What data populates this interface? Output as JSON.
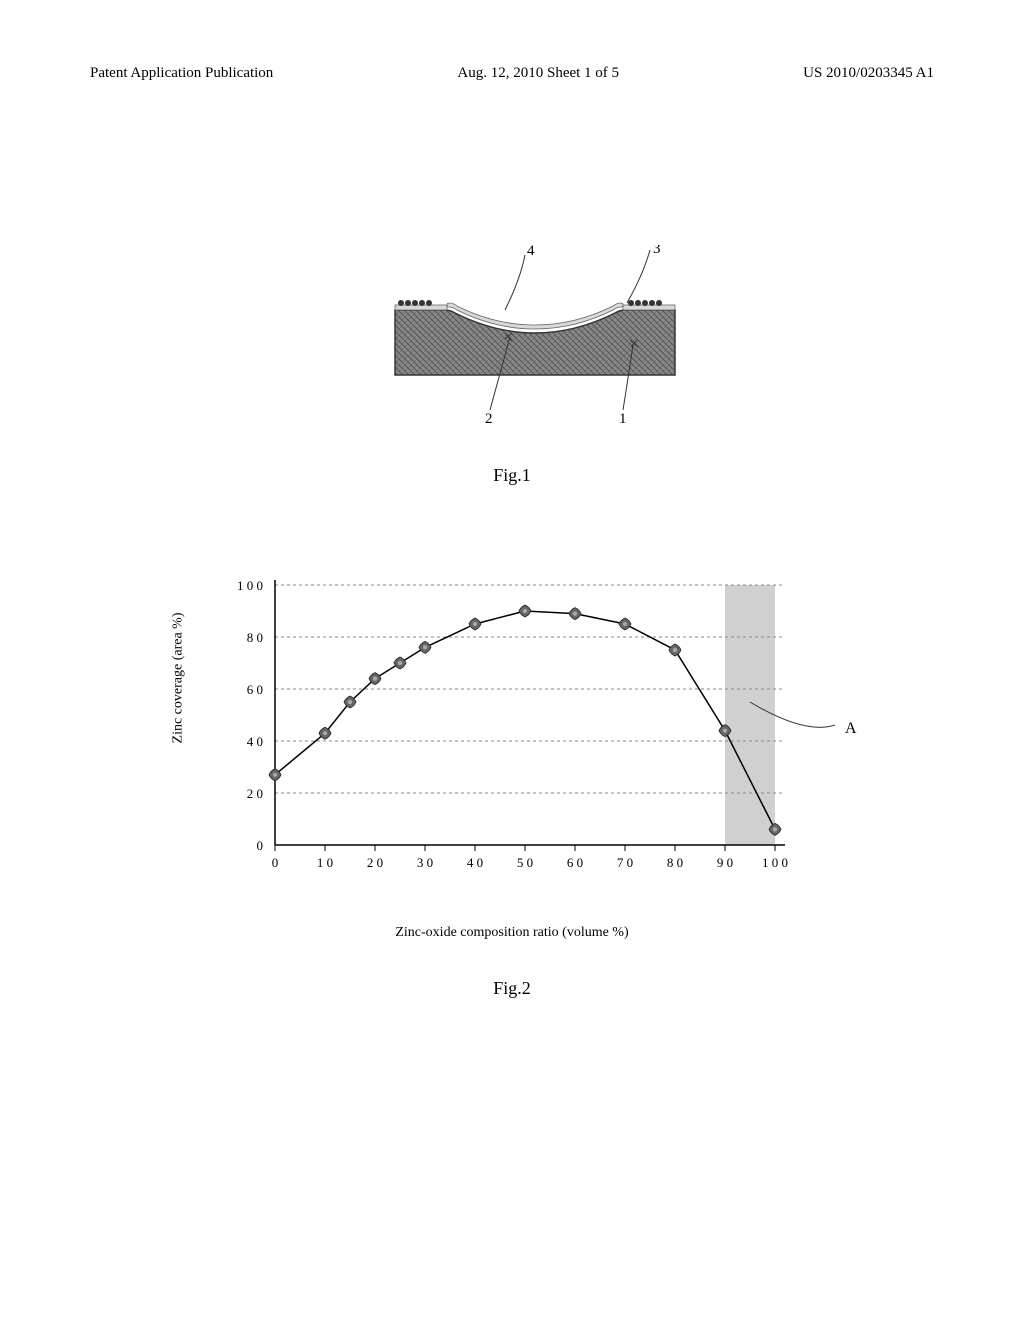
{
  "header": {
    "left": "Patent Application Publication",
    "center": "Aug. 12, 2010  Sheet 1 of 5",
    "right": "US 2010/0203345 A1"
  },
  "fig1": {
    "caption": "Fig.1",
    "labels": {
      "label_4": "4",
      "label_3": "3",
      "label_2": "2",
      "label_1": "1"
    },
    "colors": {
      "substrate_fill": "#888888",
      "substrate_hatch": "#555555",
      "surface_layer": "#d8d8d8",
      "particles": "#333333",
      "lead_line": "#333333"
    }
  },
  "fig2": {
    "caption": "Fig.2",
    "ylabel": "Zinc coverage (area %)",
    "xlabel": "Zinc-oxide composition ratio (volume %)",
    "annotation_A": "A",
    "type": "line",
    "xlim": [
      0,
      100
    ],
    "ylim": [
      0,
      100
    ],
    "xtick_step": 10,
    "ytick_step": 20,
    "xticks": [
      "0",
      "1 0",
      "2 0",
      "3 0",
      "4 0",
      "5 0",
      "6 0",
      "7 0",
      "8 0",
      "9 0",
      "1 0 0"
    ],
    "yticks": [
      "0",
      "2 0",
      "4 0",
      "6 0",
      "8 0",
      "1 0 0"
    ],
    "tick_fontsize": 13,
    "label_fontsize": 14,
    "data_points": [
      {
        "x": 0,
        "y": 27
      },
      {
        "x": 10,
        "y": 43
      },
      {
        "x": 15,
        "y": 55
      },
      {
        "x": 20,
        "y": 64
      },
      {
        "x": 25,
        "y": 70
      },
      {
        "x": 30,
        "y": 76
      },
      {
        "x": 40,
        "y": 85
      },
      {
        "x": 50,
        "y": 90
      },
      {
        "x": 60,
        "y": 89
      },
      {
        "x": 70,
        "y": 85
      },
      {
        "x": 80,
        "y": 75
      },
      {
        "x": 90,
        "y": 44
      },
      {
        "x": 100,
        "y": 6
      }
    ],
    "shaded_region": {
      "x_start": 90,
      "x_end": 100
    },
    "colors": {
      "axis": "#000000",
      "grid": "#888888",
      "line": "#000000",
      "marker_fill": "#666666",
      "marker_stroke": "#222222",
      "shaded_fill": "#d0d0d0",
      "background": "#ffffff",
      "lead_line": "#333333"
    },
    "marker_size": 6,
    "line_width": 1.5,
    "grid_dash": "3,3"
  }
}
